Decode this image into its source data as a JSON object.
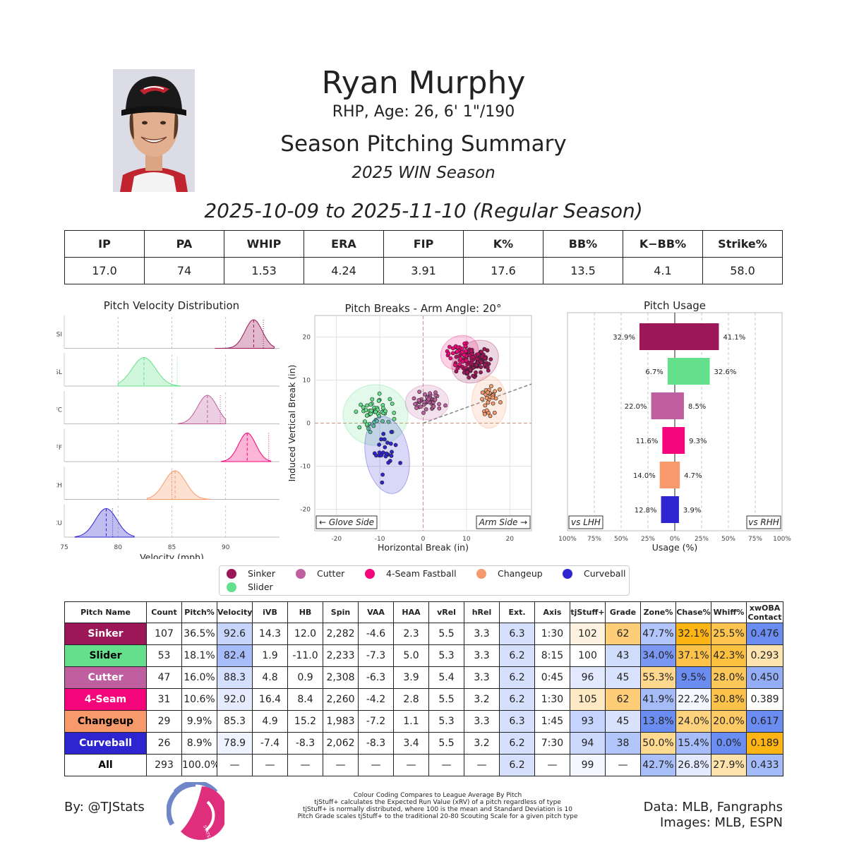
{
  "header": {
    "name": "Ryan Murphy",
    "info": "RHP, Age: 26, 6' 1\"/190",
    "summary": "Season Pitching Summary",
    "season": "2025 WIN Season",
    "date_range": "2025-10-09 to 2025-11-10 (Regular Season)"
  },
  "stats": {
    "headers": [
      "IP",
      "PA",
      "WHIP",
      "ERA",
      "FIP",
      "K%",
      "BB%",
      "K−BB%",
      "Strike%"
    ],
    "values": [
      "17.0",
      "74",
      "1.53",
      "4.24",
      "3.91",
      "17.6",
      "13.5",
      "4.1",
      "58.0"
    ]
  },
  "colors": {
    "Sinker": "#9c1758",
    "Slider": "#64e08c",
    "Cutter": "#bf5fa0",
    "4-Seam": "#f5057c",
    "Changeup": "#f69a6b",
    "Curveball": "#2e25d1",
    "grade_hi": "#fdb515",
    "grade_lo": "#6b8cf0"
  },
  "chart_data": [
    {
      "type": "area",
      "title": "Pitch Velocity Distribution",
      "xlabel": "Velocity (mph)",
      "xlim": [
        75,
        95
      ],
      "xticks": [
        "75",
        "80",
        "85",
        "90"
      ],
      "series": [
        {
          "name": "SI",
          "mean": 92.6,
          "league": 93.5,
          "spread": 0.8,
          "min": 89.0,
          "max": 94.5
        },
        {
          "name": "SL",
          "mean": 82.4,
          "league": 85.5,
          "spread": 1.1,
          "min": 80.0,
          "max": 85.8
        },
        {
          "name": "FC",
          "mean": 88.3,
          "league": 89.5,
          "spread": 0.9,
          "min": 85.6,
          "max": 90.0
        },
        {
          "name": "FF",
          "mean": 92.0,
          "league": 94.0,
          "spread": 0.8,
          "min": 89.6,
          "max": 94.2
        },
        {
          "name": "CH",
          "mean": 85.3,
          "league": 85.0,
          "spread": 1.0,
          "min": 82.7,
          "max": 88.6
        },
        {
          "name": "CU",
          "mean": 78.9,
          "league": 79.5,
          "spread": 1.0,
          "min": 76.0,
          "max": 81.5
        }
      ]
    },
    {
      "type": "scatter",
      "title": "Pitch Breaks - Arm Angle: 20°",
      "xlabel": "Horizontal Break (in)",
      "ylabel": "Induced Vertical Break (in)",
      "xlim": [
        -25,
        25
      ],
      "ylim": [
        -25,
        25
      ],
      "xticks": [
        "-20",
        "-10",
        "0",
        "10",
        "20"
      ],
      "yticks": [
        "20",
        "10",
        "0",
        "-10",
        "-20"
      ],
      "arm_angle_deg": 20,
      "left_label": "← Glove Side",
      "right_label": "Arm Side →",
      "series": [
        {
          "name": "Sinker",
          "count": 107,
          "x": 12.0,
          "y": 14.3,
          "sx": 2.3,
          "sy": 1.8,
          "rot": -35
        },
        {
          "name": "Slider",
          "count": 53,
          "x": -11.0,
          "y": 1.9,
          "sx": 3.0,
          "sy": 2.8,
          "rot": 0
        },
        {
          "name": "Cutter",
          "count": 47,
          "x": 0.9,
          "y": 4.8,
          "sx": 2.0,
          "sy": 1.6,
          "rot": 0
        },
        {
          "name": "4-Seam Fastball",
          "count": 31,
          "x": 8.4,
          "y": 16.4,
          "sx": 1.8,
          "sy": 1.5,
          "rot": -30
        },
        {
          "name": "Changeup",
          "count": 29,
          "x": 15.2,
          "y": 4.9,
          "sx": 1.6,
          "sy": 2.4,
          "rot": 0
        },
        {
          "name": "Curveball",
          "count": 26,
          "x": -8.3,
          "y": -7.4,
          "sx": 2.0,
          "sy": 3.6,
          "rot": -10
        }
      ]
    },
    {
      "type": "bar",
      "title": "Pitch Usage",
      "xlabel": "Usage (%)",
      "xticks": [
        "100%",
        "75%",
        "50%",
        "25%",
        "0%",
        "25%",
        "50%",
        "75%",
        "100%"
      ],
      "left_label": "vs LHH",
      "right_label": "vs RHH",
      "categories": [
        "Sinker",
        "Slider",
        "Cutter",
        "4-Seam",
        "Changeup",
        "Curveball"
      ],
      "series": [
        {
          "name": "vs LHH",
          "values": [
            32.9,
            6.7,
            22.0,
            11.6,
            14.0,
            12.8
          ],
          "labels": [
            "32.9%",
            "6.7%",
            "22.0%",
            "11.6%",
            "14.0%",
            "12.8%"
          ]
        },
        {
          "name": "vs RHH",
          "values": [
            41.1,
            32.6,
            8.5,
            9.3,
            4.7,
            3.9
          ],
          "labels": [
            "41.1%",
            "32.6%",
            "8.5%",
            "9.3%",
            "4.7%",
            "3.9%"
          ]
        }
      ]
    }
  ],
  "legend": {
    "items": [
      {
        "label": "Sinker",
        "color": "#9c1758"
      },
      {
        "label": "Cutter",
        "color": "#bf5fa0"
      },
      {
        "label": "4-Seam Fastball",
        "color": "#f5057c"
      },
      {
        "label": "Changeup",
        "color": "#f69a6b"
      },
      {
        "label": "Curveball",
        "color": "#2e25d1"
      },
      {
        "label": "Slider",
        "color": "#64e08c"
      }
    ]
  },
  "pitch_table": {
    "headers": [
      "Pitch Name",
      "Count",
      "Pitch%",
      "Velocity",
      "iVB",
      "HB",
      "Spin",
      "VAA",
      "HAA",
      "vRel",
      "hRel",
      "Ext.",
      "Axis",
      "tjStuff+",
      "Grade",
      "Zone%",
      "Chase%",
      "Whiff%",
      "xwOBA Contact"
    ],
    "rows": [
      {
        "name": "Sinker",
        "bg": "#9c1758",
        "fg": "#ffffff",
        "cells": [
          "107",
          "36.5%",
          "92.6",
          "14.3",
          "12.0",
          "2,282",
          "-4.6",
          "2.3",
          "5.5",
          "3.3",
          "6.3",
          "1:30",
          "102",
          "62",
          "47.7%",
          "32.1%",
          "25.5%",
          "0.476"
        ],
        "shades": [
          "",
          "",
          "#c8d5fb",
          "",
          "",
          "",
          "",
          "",
          "",
          "",
          "#d6e0fd",
          "",
          "#fdf3e0",
          "#fdcd77",
          "#b3c6fb",
          "#fdb515",
          "#fdc54f",
          "#6b8cf0"
        ]
      },
      {
        "name": "Slider",
        "bg": "#64e08c",
        "fg": "#000000",
        "cells": [
          "53",
          "18.1%",
          "82.4",
          "1.9",
          "-11.0",
          "2,233",
          "-7.3",
          "5.0",
          "5.3",
          "3.3",
          "6.2",
          "8:15",
          "100",
          "43",
          "34.0%",
          "37.1%",
          "42.3%",
          "0.293"
        ],
        "shades": [
          "",
          "",
          "#a7bdfa",
          "",
          "",
          "",
          "",
          "",
          "",
          "",
          "#d6e0fd",
          "",
          "",
          "#d0dcfc",
          "#7a97f3",
          "#fdc24a",
          "#fdc03f",
          "#fde3ad"
        ]
      },
      {
        "name": "Cutter",
        "bg": "#bf5fa0",
        "fg": "#ffffff",
        "cells": [
          "47",
          "16.0%",
          "88.3",
          "4.8",
          "0.9",
          "2,308",
          "-6.3",
          "3.9",
          "5.4",
          "3.3",
          "6.2",
          "0:45",
          "96",
          "45",
          "55.3%",
          "9.5%",
          "28.0%",
          "0.450"
        ],
        "shades": [
          "",
          "",
          "#d4defd",
          "",
          "",
          "",
          "",
          "",
          "",
          "",
          "#d6e0fd",
          "",
          "#e2e9fe",
          "#d8e2fd",
          "#fed88f",
          "#6b8cf0",
          "#fdc75a",
          "#93aef7"
        ]
      },
      {
        "name": "4-Seam",
        "bg": "#f5057c",
        "fg": "#ffffff",
        "cells": [
          "31",
          "10.6%",
          "92.0",
          "16.4",
          "8.4",
          "2,260",
          "-4.2",
          "2.8",
          "5.5",
          "3.2",
          "6.2",
          "1:30",
          "105",
          "62",
          "41.9%",
          "22.2%",
          "30.8%",
          "0.389"
        ],
        "shades": [
          "",
          "",
          "#e6ecfe",
          "",
          "",
          "",
          "",
          "",
          "",
          "",
          "#d6e0fd",
          "",
          "#fde9c4",
          "#fdcd77",
          "#a5bcf9",
          "#f3f6ff",
          "#fdc24a",
          ""
        ]
      },
      {
        "name": "Changeup",
        "bg": "#f69a6b",
        "fg": "#000000",
        "cells": [
          "29",
          "9.9%",
          "85.3",
          "4.9",
          "15.2",
          "1,983",
          "-7.2",
          "1.1",
          "5.3",
          "3.3",
          "6.3",
          "1:45",
          "93",
          "45",
          "13.8%",
          "24.0%",
          "20.0%",
          "0.617"
        ],
        "shades": [
          "",
          "",
          "",
          "",
          "",
          "",
          "",
          "",
          "",
          "",
          "#d6e0fd",
          "",
          "#c5d4fc",
          "#d8e2fd",
          "#6b8cf0",
          "#fdd27e",
          "#fdca65",
          "#6b8cf0"
        ]
      },
      {
        "name": "Curveball",
        "bg": "#2e25d1",
        "fg": "#ffffff",
        "cells": [
          "26",
          "8.9%",
          "78.9",
          "-7.4",
          "-8.3",
          "2,062",
          "-8.3",
          "3.4",
          "5.5",
          "3.2",
          "6.2",
          "7:30",
          "94",
          "38",
          "50.0%",
          "15.4%",
          "0.0%",
          "0.189"
        ],
        "shades": [
          "",
          "",
          "#eff3ff",
          "",
          "",
          "",
          "",
          "",
          "",
          "",
          "#d6e0fd",
          "",
          "#cdd9fc",
          "#b3c6fb",
          "#fed990",
          "#a7bdfa",
          "#6b8cf0",
          "#fdb515"
        ]
      },
      {
        "name": "All",
        "bg": "#ffffff",
        "fg": "#000000",
        "cells": [
          "293",
          "100.0%",
          "—",
          "—",
          "—",
          "—",
          "—",
          "—",
          "—",
          "—",
          "6.2",
          "—",
          "99",
          "—",
          "42.7%",
          "26.8%",
          "27.9%",
          "0.433"
        ],
        "shades": [
          "",
          "",
          "",
          "",
          "",
          "",
          "",
          "",
          "",
          "",
          "#d6e0fd",
          "",
          "#f3f6ff",
          "",
          "#a9bff9",
          "#e3eafe",
          "#fde2ab",
          "#a3bbf9"
        ]
      }
    ]
  },
  "footer": {
    "byline": "By: @TJStats",
    "logo_text": "STATS",
    "notes": [
      "Colour Coding Compares to League Average By Pitch",
      "tjStuff+ calculates the Expected Run Value (xRV) of a pitch regardless of type",
      "tjStuff+ is normally distributed, where 100 is the mean and Standard Deviation is 10",
      "Pitch Grade scales tjStuff+ to the traditional 20-80 Scouting Scale for a given pitch type"
    ],
    "data_credit": "Data: MLB, Fangraphs",
    "images_credit": "Images: MLB, ESPN"
  }
}
